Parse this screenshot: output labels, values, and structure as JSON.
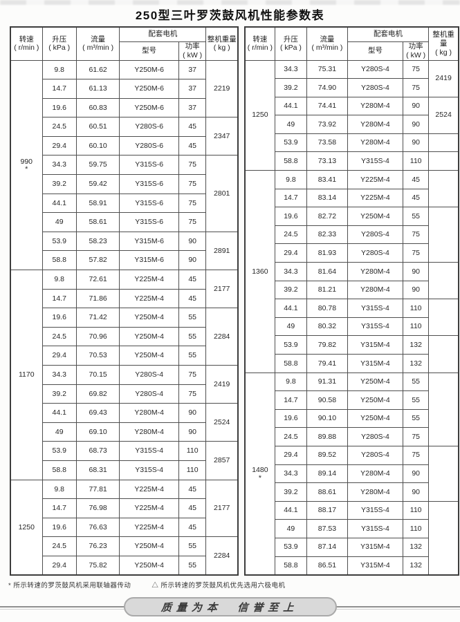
{
  "title": "250型三叶罗茨鼓风机性能参数表",
  "header": {
    "speed": "转速\n( r/min )",
    "pressure": "升压\n( kPa )",
    "flow": "流量\n( m³/min )",
    "motor": "配套电机",
    "model": "型号",
    "power": "功率\n( kW )",
    "weight": "整机重量\n( kg )"
  },
  "tables": [
    {
      "name": "performance-table-left",
      "sections": [
        {
          "speed": "990",
          "mark": "*",
          "rows": [
            [
              "9.8",
              "61.62",
              "Y250M-6",
              "37"
            ],
            [
              "14.7",
              "61.13",
              "Y250M-6",
              "37"
            ],
            [
              "19.6",
              "60.83",
              "Y250M-6",
              "37"
            ],
            [
              "24.5",
              "60.51",
              "Y280S-6",
              "45"
            ],
            [
              "29.4",
              "60.10",
              "Y280S-6",
              "45"
            ],
            [
              "34.3",
              "59.75",
              "Y315S-6",
              "75"
            ],
            [
              "39.2",
              "59.42",
              "Y315S-6",
              "75"
            ],
            [
              "44.1",
              "58.91",
              "Y315S-6",
              "75"
            ],
            [
              "49",
              "58.61",
              "Y315S-6",
              "75"
            ],
            [
              "53.9",
              "58.23",
              "Y315M-6",
              "90"
            ],
            [
              "58.8",
              "57.82",
              "Y315M-6",
              "90"
            ]
          ],
          "weights": [
            {
              "v": "2219",
              "span": 3
            },
            {
              "v": "2347",
              "span": 2
            },
            {
              "v": "2801",
              "span": 4
            },
            {
              "v": "2891",
              "span": 2
            }
          ]
        },
        {
          "speed": "1170",
          "mark": "",
          "rows": [
            [
              "9.8",
              "72.61",
              "Y225M-4",
              "45"
            ],
            [
              "14.7",
              "71.86",
              "Y225M-4",
              "45"
            ],
            [
              "19.6",
              "71.42",
              "Y250M-4",
              "55"
            ],
            [
              "24.5",
              "70.96",
              "Y250M-4",
              "55"
            ],
            [
              "29.4",
              "70.53",
              "Y250M-4",
              "55"
            ],
            [
              "34.3",
              "70.15",
              "Y280S-4",
              "75"
            ],
            [
              "39.2",
              "69.82",
              "Y280S-4",
              "75"
            ],
            [
              "44.1",
              "69.43",
              "Y280M-4",
              "90"
            ],
            [
              "49",
              "69.10",
              "Y280M-4",
              "90"
            ],
            [
              "53.9",
              "68.73",
              "Y315S-4",
              "110"
            ],
            [
              "58.8",
              "68.31",
              "Y315S-4",
              "110"
            ]
          ],
          "weights": [
            {
              "v": "2177",
              "span": 2
            },
            {
              "v": "2284",
              "span": 3
            },
            {
              "v": "2419",
              "span": 2
            },
            {
              "v": "2524",
              "span": 2
            },
            {
              "v": "2857",
              "span": 2
            }
          ]
        },
        {
          "speed": "1250",
          "mark": "",
          "rows": [
            [
              "9.8",
              "77.81",
              "Y225M-4",
              "45"
            ],
            [
              "14.7",
              "76.98",
              "Y225M-4",
              "45"
            ],
            [
              "19.6",
              "76.63",
              "Y225M-4",
              "45"
            ],
            [
              "24.5",
              "76.23",
              "Y250M-4",
              "55"
            ],
            [
              "29.4",
              "75.82",
              "Y250M-4",
              "55"
            ]
          ],
          "weights": [
            {
              "v": "2177",
              "span": 3
            },
            {
              "v": "2284",
              "span": 2
            }
          ]
        }
      ]
    },
    {
      "name": "performance-table-right",
      "sections": [
        {
          "speed": "1250",
          "mark": "",
          "rows": [
            [
              "34.3",
              "75.31",
              "Y280S-4",
              "75"
            ],
            [
              "39.2",
              "74.90",
              "Y280S-4",
              "75"
            ],
            [
              "44.1",
              "74.41",
              "Y280M-4",
              "90"
            ],
            [
              "49",
              "73.92",
              "Y280M-4",
              "90"
            ],
            [
              "53.9",
              "73.58",
              "Y280M-4",
              "90"
            ],
            [
              "58.8",
              "73.13",
              "Y315S-4",
              "110"
            ]
          ],
          "weights": [
            {
              "v": "2419",
              "span": 2
            },
            {
              "v": "2524",
              "span": 2
            },
            {
              "v": "",
              "span": 1
            },
            {
              "v": "",
              "span": 1
            }
          ]
        },
        {
          "speed": "1360",
          "mark": "",
          "rows": [
            [
              "9.8",
              "83.41",
              "Y225M-4",
              "45"
            ],
            [
              "14.7",
              "83.14",
              "Y225M-4",
              "45"
            ],
            [
              "19.6",
              "82.72",
              "Y250M-4",
              "55"
            ],
            [
              "24.5",
              "82.33",
              "Y280S-4",
              "75"
            ],
            [
              "29.4",
              "81.93",
              "Y280S-4",
              "75"
            ],
            [
              "34.3",
              "81.64",
              "Y280M-4",
              "90"
            ],
            [
              "39.2",
              "81.21",
              "Y280M-4",
              "90"
            ],
            [
              "44.1",
              "80.78",
              "Y315S-4",
              "110"
            ],
            [
              "49",
              "80.32",
              "Y315S-4",
              "110"
            ],
            [
              "53.9",
              "79.82",
              "Y315M-4",
              "132"
            ],
            [
              "58.8",
              "79.41",
              "Y315M-4",
              "132"
            ]
          ],
          "weights": [
            {
              "v": "",
              "span": 2
            },
            {
              "v": "",
              "span": 3
            },
            {
              "v": "",
              "span": 2
            },
            {
              "v": "",
              "span": 2
            },
            {
              "v": "",
              "span": 2
            }
          ]
        },
        {
          "speed": "1480",
          "mark": "*",
          "rows": [
            [
              "9.8",
              "91.31",
              "Y250M-4",
              "55"
            ],
            [
              "14.7",
              "90.58",
              "Y250M-4",
              "55"
            ],
            [
              "19.6",
              "90.10",
              "Y250M-4",
              "55"
            ],
            [
              "24.5",
              "89.88",
              "Y280S-4",
              "75"
            ],
            [
              "29.4",
              "89.52",
              "Y280S-4",
              "75"
            ],
            [
              "34.3",
              "89.14",
              "Y280M-4",
              "90"
            ],
            [
              "39.2",
              "88.61",
              "Y280M-4",
              "90"
            ],
            [
              "44.1",
              "88.17",
              "Y315S-4",
              "110"
            ],
            [
              "49",
              "87.53",
              "Y315S-4",
              "110"
            ],
            [
              "53.9",
              "87.14",
              "Y315M-4",
              "132"
            ],
            [
              "58.8",
              "86.51",
              "Y315M-4",
              "132"
            ]
          ],
          "weights": [
            {
              "v": "",
              "span": 4
            },
            {
              "v": "",
              "span": 3
            },
            {
              "v": "",
              "span": 4
            }
          ]
        }
      ]
    }
  ],
  "footnotes": {
    "note1": "* 所示转速的罗茨鼓风机采用联轴器传动",
    "note2": "△ 所示转速的罗茨鼓风机优先选用六极电机"
  },
  "banner": {
    "text": "质量为本  信誉至上"
  },
  "colors": {
    "border": "#4e4e4e",
    "banner_fill": "#d9d9d9",
    "banner_border": "#a9a9a9"
  }
}
